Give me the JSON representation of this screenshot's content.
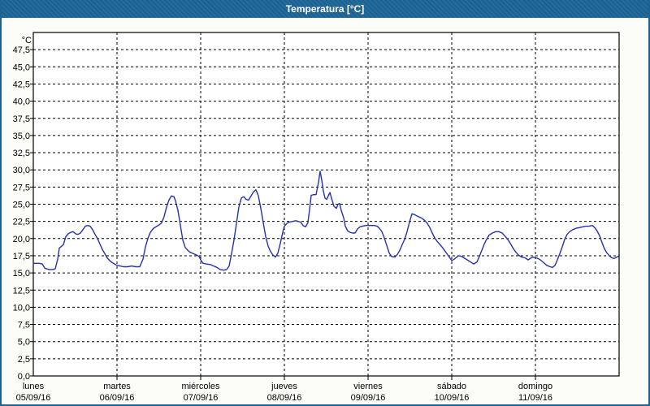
{
  "window": {
    "title": "Temperatura [°C]",
    "title_bar_color": "#1b6496",
    "border_color": "#1b6496",
    "background": "#fcfdf9",
    "plot_background": "#ffffff"
  },
  "chart_data": {
    "type": "line",
    "title": "Temperatura [°C]",
    "ylabel_unit": "°C",
    "xlabel": "",
    "ylim": [
      0,
      50
    ],
    "y_tick_step": 2.5,
    "y_tick_labels": [
      "0,0",
      "2,5",
      "5,0",
      "7,5",
      "10,0",
      "12,5",
      "15,0",
      "17,5",
      "20,0",
      "22,5",
      "25,0",
      "27,5",
      "30,0",
      "32,5",
      "35,0",
      "37,5",
      "40,0",
      "42,5",
      "45,0",
      "47,5"
    ],
    "x_days": [
      {
        "name": "lunes",
        "date": "05/09/16"
      },
      {
        "name": "martes",
        "date": "06/09/16"
      },
      {
        "name": "miércoles",
        "date": "07/09/16"
      },
      {
        "name": "jueves",
        "date": "08/09/16"
      },
      {
        "name": "viernes",
        "date": "09/09/16"
      },
      {
        "name": "sábado",
        "date": "10/09/16"
      },
      {
        "name": "domingo",
        "date": "11/09/16"
      }
    ],
    "grid": "dashed-black",
    "legend": "none",
    "line_color": "#2431b4",
    "series": [
      {
        "name": "Temperatura",
        "points_day_temp": [
          [
            0.0,
            16.4
          ],
          [
            0.07,
            16.4
          ],
          [
            0.107,
            16.3
          ],
          [
            0.136,
            15.7
          ],
          [
            0.184,
            15.5
          ],
          [
            0.233,
            15.5
          ],
          [
            0.262,
            15.6
          ],
          [
            0.291,
            17.0
          ],
          [
            0.311,
            18.6
          ],
          [
            0.34,
            18.9
          ],
          [
            0.359,
            19.1
          ],
          [
            0.388,
            20.3
          ],
          [
            0.417,
            20.7
          ],
          [
            0.447,
            20.9
          ],
          [
            0.476,
            21.0
          ],
          [
            0.505,
            20.7
          ],
          [
            0.534,
            20.6
          ],
          [
            0.563,
            20.8
          ],
          [
            0.592,
            21.3
          ],
          [
            0.621,
            21.8
          ],
          [
            0.65,
            21.9
          ],
          [
            0.68,
            21.8
          ],
          [
            0.709,
            21.3
          ],
          [
            0.738,
            20.6
          ],
          [
            0.767,
            20.0
          ],
          [
            0.796,
            19.2
          ],
          [
            0.825,
            18.4
          ],
          [
            0.854,
            17.8
          ],
          [
            0.883,
            17.2
          ],
          [
            0.913,
            16.8
          ],
          [
            0.942,
            16.5
          ],
          [
            0.971,
            16.3
          ],
          [
            1.0,
            16.1
          ],
          [
            1.039,
            16.0
          ],
          [
            1.078,
            15.9
          ],
          [
            1.126,
            15.9
          ],
          [
            1.175,
            16.0
          ],
          [
            1.223,
            15.9
          ],
          [
            1.272,
            15.9
          ],
          [
            1.311,
            17.0
          ],
          [
            1.34,
            18.8
          ],
          [
            1.369,
            20.0
          ],
          [
            1.398,
            20.9
          ],
          [
            1.437,
            21.5
          ],
          [
            1.476,
            21.8
          ],
          [
            1.505,
            22.0
          ],
          [
            1.534,
            22.3
          ],
          [
            1.563,
            23.2
          ],
          [
            1.592,
            24.6
          ],
          [
            1.621,
            25.6
          ],
          [
            1.65,
            26.2
          ],
          [
            1.68,
            26.1
          ],
          [
            1.699,
            25.5
          ],
          [
            1.728,
            24.1
          ],
          [
            1.748,
            22.7
          ],
          [
            1.767,
            21.2
          ],
          [
            1.786,
            19.8
          ],
          [
            1.816,
            18.7
          ],
          [
            1.845,
            18.3
          ],
          [
            1.874,
            18.0
          ],
          [
            1.913,
            17.8
          ],
          [
            1.951,
            17.6
          ],
          [
            1.981,
            17.4
          ],
          [
            2.0,
            16.9
          ],
          [
            2.029,
            16.4
          ],
          [
            2.068,
            16.3
          ],
          [
            2.117,
            16.2
          ],
          [
            2.155,
            16.0
          ],
          [
            2.194,
            15.8
          ],
          [
            2.233,
            15.5
          ],
          [
            2.272,
            15.4
          ],
          [
            2.311,
            15.5
          ],
          [
            2.34,
            16.0
          ],
          [
            2.369,
            17.8
          ],
          [
            2.398,
            19.8
          ],
          [
            2.427,
            22.2
          ],
          [
            2.456,
            24.6
          ],
          [
            2.485,
            25.9
          ],
          [
            2.515,
            26.1
          ],
          [
            2.544,
            25.7
          ],
          [
            2.573,
            25.6
          ],
          [
            2.602,
            26.2
          ],
          [
            2.631,
            26.8
          ],
          [
            2.66,
            27.1
          ],
          [
            2.689,
            26.2
          ],
          [
            2.718,
            24.4
          ],
          [
            2.748,
            22.3
          ],
          [
            2.777,
            20.3
          ],
          [
            2.806,
            18.9
          ],
          [
            2.835,
            18.1
          ],
          [
            2.864,
            17.6
          ],
          [
            2.893,
            17.3
          ],
          [
            2.922,
            17.9
          ],
          [
            2.951,
            19.3
          ],
          [
            2.981,
            20.9
          ],
          [
            3.0,
            21.8
          ],
          [
            3.029,
            22.2
          ],
          [
            3.058,
            22.4
          ],
          [
            3.097,
            22.5
          ],
          [
            3.136,
            22.6
          ],
          [
            3.165,
            22.5
          ],
          [
            3.194,
            22.4
          ],
          [
            3.223,
            21.9
          ],
          [
            3.252,
            21.7
          ],
          [
            3.281,
            22.3
          ],
          [
            3.301,
            24.2
          ],
          [
            3.32,
            26.3
          ],
          [
            3.35,
            26.4
          ],
          [
            3.379,
            26.4
          ],
          [
            3.408,
            28.2
          ],
          [
            3.427,
            29.8
          ],
          [
            3.447,
            28.5
          ],
          [
            3.466,
            26.9
          ],
          [
            3.485,
            25.9
          ],
          [
            3.505,
            25.7
          ],
          [
            3.524,
            26.2
          ],
          [
            3.544,
            26.7
          ],
          [
            3.573,
            25.5
          ],
          [
            3.592,
            24.7
          ],
          [
            3.621,
            24.4
          ],
          [
            3.641,
            25.0
          ],
          [
            3.66,
            25.1
          ],
          [
            3.68,
            24.1
          ],
          [
            3.709,
            23.0
          ],
          [
            3.728,
            21.8
          ],
          [
            3.757,
            21.1
          ],
          [
            3.786,
            20.9
          ],
          [
            3.816,
            20.8
          ],
          [
            3.845,
            20.8
          ],
          [
            3.874,
            21.4
          ],
          [
            3.903,
            21.7
          ],
          [
            3.932,
            21.8
          ],
          [
            3.971,
            21.9
          ],
          [
            4.0,
            21.9
          ],
          [
            4.039,
            21.9
          ],
          [
            4.078,
            21.9
          ],
          [
            4.107,
            21.8
          ],
          [
            4.136,
            21.5
          ],
          [
            4.165,
            21.0
          ],
          [
            4.194,
            20.1
          ],
          [
            4.223,
            19.0
          ],
          [
            4.252,
            17.9
          ],
          [
            4.281,
            17.4
          ],
          [
            4.32,
            17.3
          ],
          [
            4.35,
            17.7
          ],
          [
            4.379,
            18.3
          ],
          [
            4.408,
            19.1
          ],
          [
            4.437,
            19.9
          ],
          [
            4.466,
            21.0
          ],
          [
            4.495,
            22.4
          ],
          [
            4.524,
            23.6
          ],
          [
            4.553,
            23.5
          ],
          [
            4.583,
            23.3
          ],
          [
            4.621,
            23.1
          ],
          [
            4.65,
            22.9
          ],
          [
            4.68,
            22.6
          ],
          [
            4.709,
            22.2
          ],
          [
            4.738,
            21.6
          ],
          [
            4.767,
            20.8
          ],
          [
            4.796,
            20.1
          ],
          [
            4.825,
            19.6
          ],
          [
            4.854,
            19.2
          ],
          [
            4.883,
            18.8
          ],
          [
            4.913,
            18.3
          ],
          [
            4.942,
            17.8
          ],
          [
            4.971,
            17.3
          ],
          [
            5.0,
            16.8
          ],
          [
            5.029,
            17.0
          ],
          [
            5.058,
            17.3
          ],
          [
            5.087,
            17.5
          ],
          [
            5.117,
            17.4
          ],
          [
            5.146,
            17.2
          ],
          [
            5.184,
            16.9
          ],
          [
            5.223,
            16.6
          ],
          [
            5.262,
            16.3
          ],
          [
            5.301,
            16.6
          ],
          [
            5.33,
            17.4
          ],
          [
            5.359,
            18.3
          ],
          [
            5.388,
            19.2
          ],
          [
            5.417,
            19.9
          ],
          [
            5.446,
            20.5
          ],
          [
            5.485,
            20.8
          ],
          [
            5.524,
            21.0
          ],
          [
            5.563,
            21.0
          ],
          [
            5.602,
            20.8
          ],
          [
            5.641,
            20.3
          ],
          [
            5.68,
            19.7
          ],
          [
            5.709,
            19.1
          ],
          [
            5.738,
            18.5
          ],
          [
            5.767,
            18.0
          ],
          [
            5.796,
            17.6
          ],
          [
            5.835,
            17.3
          ],
          [
            5.874,
            17.2
          ],
          [
            5.913,
            16.9
          ],
          [
            5.951,
            17.2
          ],
          [
            5.981,
            17.3
          ],
          [
            6.0,
            17.2
          ],
          [
            6.029,
            17.1
          ],
          [
            6.058,
            16.9
          ],
          [
            6.097,
            16.5
          ],
          [
            6.136,
            16.1
          ],
          [
            6.175,
            15.9
          ],
          [
            6.204,
            15.8
          ],
          [
            6.233,
            16.1
          ],
          [
            6.262,
            16.9
          ],
          [
            6.291,
            17.8
          ],
          [
            6.32,
            18.8
          ],
          [
            6.35,
            19.9
          ],
          [
            6.379,
            20.6
          ],
          [
            6.408,
            21.0
          ],
          [
            6.447,
            21.3
          ],
          [
            6.485,
            21.5
          ],
          [
            6.524,
            21.6
          ],
          [
            6.563,
            21.7
          ],
          [
            6.602,
            21.8
          ],
          [
            6.641,
            21.8
          ],
          [
            6.68,
            21.9
          ],
          [
            6.709,
            21.6
          ],
          [
            6.738,
            21.1
          ],
          [
            6.767,
            20.4
          ],
          [
            6.796,
            19.4
          ],
          [
            6.825,
            18.5
          ],
          [
            6.854,
            17.9
          ],
          [
            6.883,
            17.5
          ],
          [
            6.913,
            17.2
          ],
          [
            6.942,
            17.1
          ],
          [
            6.971,
            17.3
          ],
          [
            6.99,
            17.4
          ]
        ]
      }
    ]
  }
}
